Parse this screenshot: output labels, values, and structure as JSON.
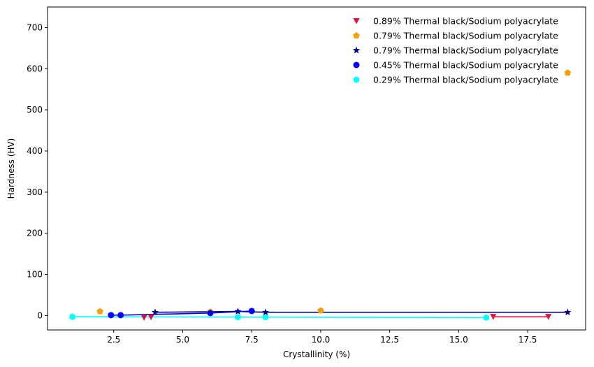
{
  "chart_data": {
    "type": "scatter",
    "title": "",
    "xlabel": "Crystallinity (%)",
    "ylabel": "Hardness (HV)",
    "xlim": [
      0.1,
      19.6
    ],
    "ylim": [
      -35,
      750
    ],
    "xticks": [
      2.5,
      5.0,
      7.5,
      10.0,
      12.5,
      15.0,
      17.5
    ],
    "xtick_labels": [
      "2.5",
      "5.0",
      "7.5",
      "10.0",
      "12.5",
      "15.0",
      "17.5"
    ],
    "yticks": [
      0,
      100,
      200,
      300,
      400,
      500,
      600,
      700
    ],
    "ytick_labels": [
      "0",
      "100",
      "200",
      "300",
      "400",
      "500",
      "600",
      "700"
    ],
    "grid": false,
    "legend_position": "top-right",
    "series": [
      {
        "name": "0.89% Thermal black/Sodium polyacrylate",
        "color": "#dc143c",
        "marker": "triangle-down",
        "points": [
          [
            3.6,
            -5
          ],
          [
            3.85,
            -4
          ],
          [
            16.25,
            -3
          ],
          [
            18.25,
            -3
          ]
        ],
        "line": [
          [
            16.25,
            -3
          ],
          [
            18.25,
            -3
          ]
        ]
      },
      {
        "name": "0.79% Thermal black/Sodium polyacrylate",
        "color": "#f5a00a",
        "marker": "pentagon",
        "points": [
          [
            2.0,
            10
          ],
          [
            6.0,
            9
          ],
          [
            10.0,
            12
          ],
          [
            18.95,
            590
          ]
        ],
        "line": []
      },
      {
        "name": "0.79% Thermal black/Sodium polyacrylate",
        "color": "#000080",
        "marker": "star",
        "points": [
          [
            4.0,
            8
          ],
          [
            7.0,
            10
          ],
          [
            8.0,
            8
          ],
          [
            18.95,
            8
          ]
        ],
        "line": [
          [
            4.0,
            8
          ],
          [
            7.0,
            10
          ],
          [
            8.0,
            8
          ],
          [
            18.95,
            8
          ]
        ]
      },
      {
        "name": "0.45% Thermal black/Sodium polyacrylate",
        "color": "#0000ff",
        "marker": "circle",
        "points": [
          [
            2.4,
            1
          ],
          [
            2.75,
            1
          ],
          [
            6.0,
            6
          ],
          [
            7.5,
            11
          ]
        ],
        "line": [
          [
            2.4,
            1
          ],
          [
            2.75,
            1
          ],
          [
            6.0,
            6
          ],
          [
            7.5,
            11
          ]
        ]
      },
      {
        "name": "0.29% Thermal black/Sodium polyacrylate",
        "color": "#00ffff",
        "marker": "hexagon",
        "points": [
          [
            1.0,
            -3
          ],
          [
            7.0,
            -4
          ],
          [
            8.0,
            -4
          ],
          [
            16.0,
            -5
          ]
        ],
        "line": [
          [
            1.0,
            -3
          ],
          [
            16.0,
            -5
          ]
        ]
      }
    ]
  }
}
